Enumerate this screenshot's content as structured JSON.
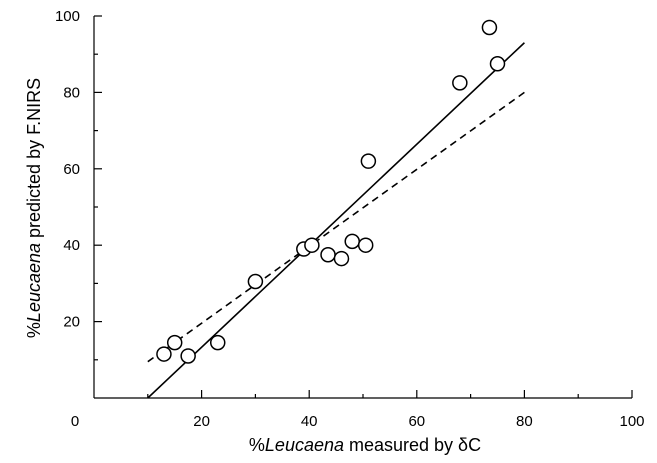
{
  "chart_data": {
    "type": "scatter",
    "xlabel_prefix": "%",
    "xlabel_italic": "Leucaena",
    "xlabel_suffix": " measured by δC",
    "ylabel_prefix": "%",
    "ylabel_italic": "Leucaena",
    "ylabel_suffix": " predicted by F.NIRS",
    "xlim": [
      0,
      100
    ],
    "ylim": [
      0,
      100
    ],
    "xticks": [
      0,
      20,
      40,
      60,
      80,
      100
    ],
    "yticks": [
      20,
      40,
      60,
      80,
      100
    ],
    "minor_step": 10,
    "grid": false,
    "series": [
      {
        "marker": "open-circle",
        "x": [
          13,
          15,
          17.5,
          23,
          30,
          39,
          40.5,
          43.5,
          46,
          48,
          50.5,
          51,
          68,
          73.5,
          75
        ],
        "y": [
          11.5,
          14.5,
          11,
          14.5,
          30.5,
          39,
          40,
          37.5,
          36.5,
          41,
          40,
          62,
          82.5,
          97,
          87.5
        ]
      }
    ],
    "lines": [
      {
        "style": "solid",
        "x": [
          10,
          80
        ],
        "y": [
          0,
          93
        ]
      },
      {
        "style": "dashed",
        "x": [
          10,
          80
        ],
        "y": [
          9.5,
          80
        ]
      }
    ]
  }
}
